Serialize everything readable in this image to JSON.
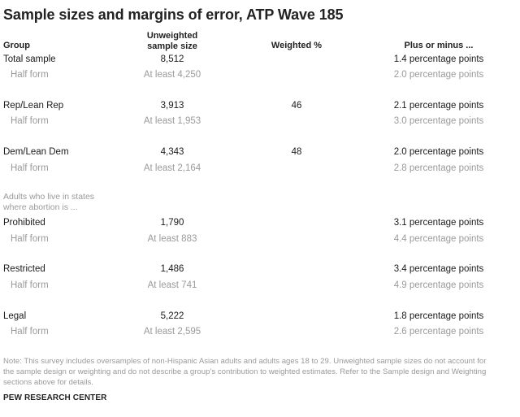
{
  "title": "Sample sizes and margins of error, ATP Wave 185",
  "headers": {
    "group": "Group",
    "unweighted_line1": "Unweighted",
    "unweighted_line2": "sample size",
    "weighted": "Weighted %",
    "plus_minus": "Plus or minus ..."
  },
  "rows": [
    {
      "group": "Total sample",
      "size": "8,512",
      "weighted": "",
      "pm": "1.4 percentage points"
    },
    {
      "group": "Half form",
      "size": "At least 4,250",
      "weighted": "",
      "pm": "2.0 percentage points"
    },
    {
      "group": "Rep/Lean Rep",
      "size": "3,913",
      "weighted": "46",
      "pm": "2.1 percentage points"
    },
    {
      "group": "Half form",
      "size": "At least 1,953",
      "weighted": "",
      "pm": "3.0 percentage points"
    },
    {
      "group": "Dem/Lean Dem",
      "size": "4,343",
      "weighted": "48",
      "pm": "2.0 percentage points"
    },
    {
      "group": "Half form",
      "size": "At least 2,164",
      "weighted": "",
      "pm": "2.8 percentage points"
    },
    {
      "group": "Prohibited",
      "size": "1,790",
      "weighted": "",
      "pm": "3.1 percentage points"
    },
    {
      "group": "Half form",
      "size": "At least 883",
      "weighted": "",
      "pm": "4.4 percentage points"
    },
    {
      "group": "Restricted",
      "size": "1,486",
      "weighted": "",
      "pm": "3.4 percentage points"
    },
    {
      "group": "Half form",
      "size": "At least 741",
      "weighted": "",
      "pm": "4.9 percentage points"
    },
    {
      "group": "Legal",
      "size": "5,222",
      "weighted": "",
      "pm": "1.8 percentage points"
    },
    {
      "group": "Half form",
      "size": "At least 2,595",
      "weighted": "",
      "pm": "2.6 percentage points"
    }
  ],
  "subheading_line1": "Adults who live in states",
  "subheading_line2": "where abortion is ...",
  "note_line1": "Note: This survey includes oversamples of non-Hispanic Asian adults and adults ages 18 to 29. Unweighted sample sizes do not account for",
  "note_line2": "the sample design or weighting and do not describe a group’s contribution to weighted estimates. Refer to the Sample design and Weighting",
  "note_line3": "sections above for details.",
  "source": "PEW RESEARCH CENTER",
  "colors": {
    "text": "#1a1a1a",
    "muted": "#9a9a9a"
  }
}
